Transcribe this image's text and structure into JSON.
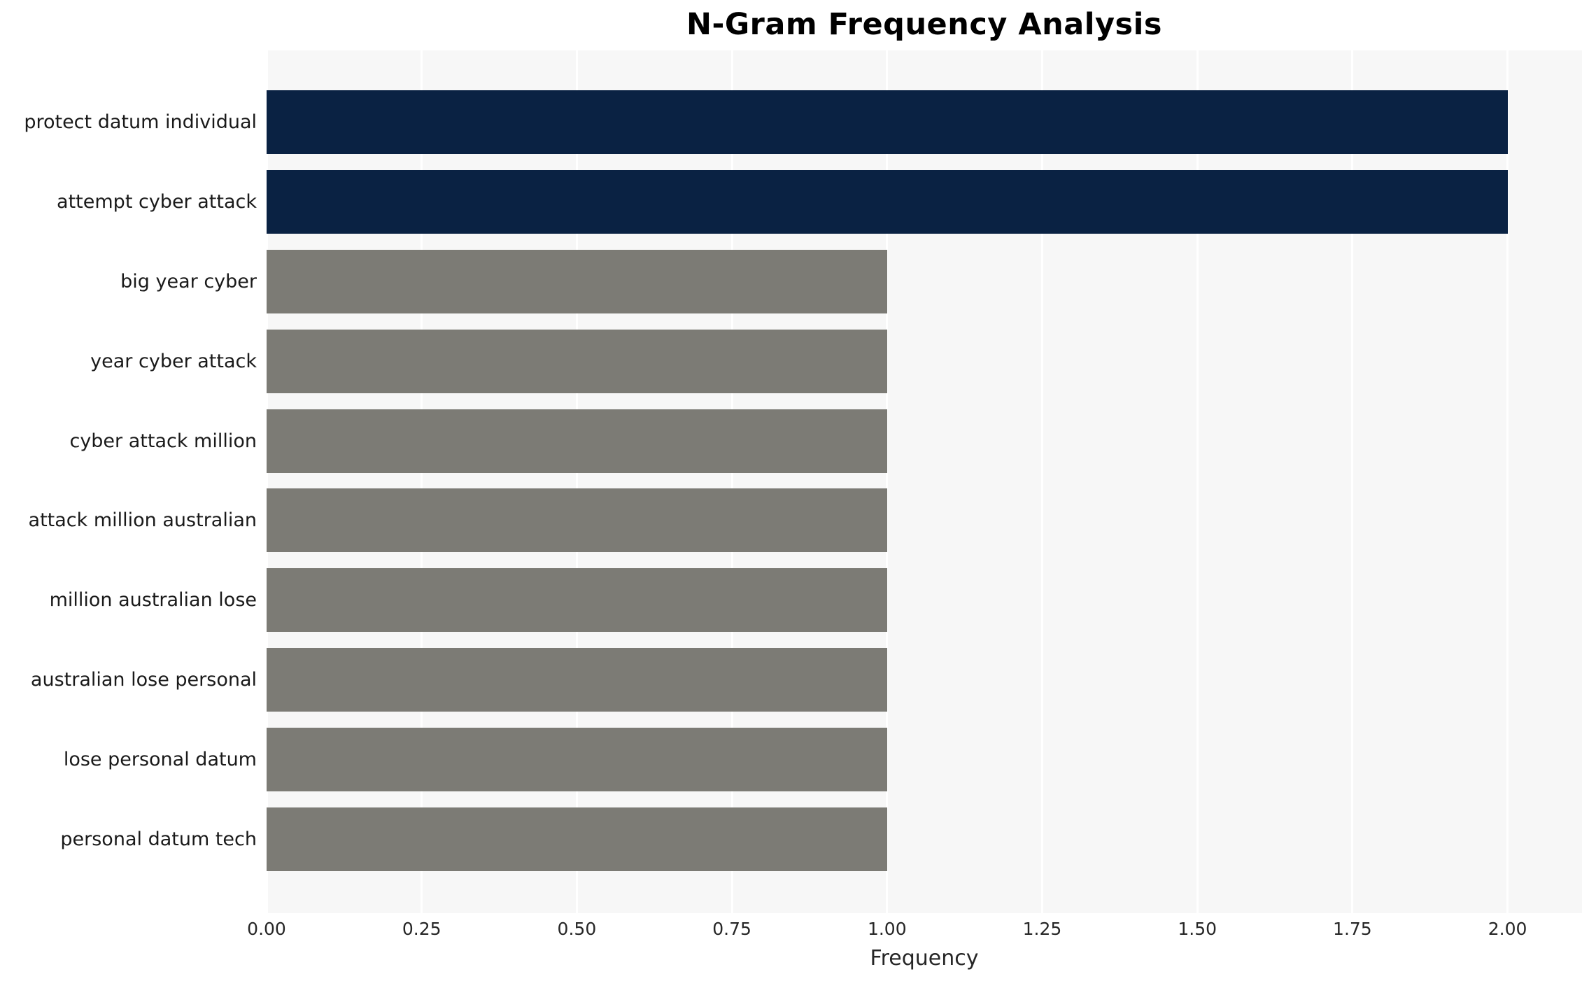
{
  "chart_data": {
    "type": "bar",
    "orientation": "horizontal",
    "title": "N-Gram Frequency Analysis",
    "xlabel": "Frequency",
    "ylabel": "",
    "categories": [
      "protect datum individual",
      "attempt cyber attack",
      "big year cyber",
      "year cyber attack",
      "cyber attack million",
      "attack million australian",
      "million australian lose",
      "australian lose personal",
      "lose personal datum",
      "personal datum tech"
    ],
    "values": [
      2,
      2,
      1,
      1,
      1,
      1,
      1,
      1,
      1,
      1
    ],
    "bar_colors": [
      "#0a2243",
      "#0a2243",
      "#7c7b75",
      "#7c7b75",
      "#7c7b75",
      "#7c7b75",
      "#7c7b75",
      "#7c7b75",
      "#7c7b75",
      "#7c7b75"
    ],
    "xlim": [
      0,
      2.12
    ],
    "xticks": [
      0,
      0.25,
      0.5,
      0.75,
      1,
      1.25,
      1.5,
      1.75,
      2
    ],
    "xtick_labels": [
      "0.00",
      "0.25",
      "0.50",
      "0.75",
      "1.00",
      "1.25",
      "1.50",
      "1.75",
      "2.00"
    ],
    "legend": "none",
    "grid": "vertical-white-gridlines",
    "colors": {
      "highlight_bar": "#0a2243",
      "default_bar": "#7c7b75",
      "plot_background": "#f7f7f7",
      "figure_background": "#ffffff",
      "gridline": "#ffffff",
      "text": "#1a1a1a"
    }
  }
}
